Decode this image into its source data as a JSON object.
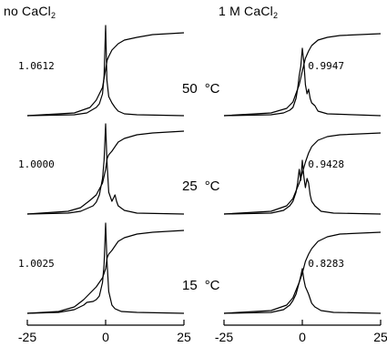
{
  "headers": {
    "left": {
      "prefix": "no CaCl",
      "subscript": "2"
    },
    "right": {
      "prefix": "1 M CaCl",
      "subscript": "2"
    }
  },
  "chart_data": {
    "type": "line",
    "title": "",
    "xlabel": "",
    "ylabel": "",
    "xlim": [
      -25,
      25
    ],
    "x_ticks": [
      "-25",
      "0",
      "25"
    ],
    "grid": false,
    "legend": "none",
    "temperatures": [
      {
        "value": "50",
        "unit": "°C"
      },
      {
        "value": "25",
        "unit": "°C"
      },
      {
        "value": "15",
        "unit": "°C"
      }
    ],
    "columns": [
      {
        "condition": "no CaCl2",
        "panels": [
          {
            "temperature": "50 °C",
            "scale_label": "1.0612",
            "spectrum": [
              [
                -25,
                0.01
              ],
              [
                -10,
                0.02
              ],
              [
                -6,
                0.04
              ],
              [
                -4,
                0.08
              ],
              [
                -3,
                0.1
              ],
              [
                -2,
                0.14
              ],
              [
                -1,
                0.25
              ],
              [
                -0.5,
                0.45
              ],
              [
                0,
                1.0
              ],
              [
                0.4,
                0.4
              ],
              [
                1,
                0.22
              ],
              [
                2,
                0.15
              ],
              [
                3,
                0.1
              ],
              [
                4,
                0.06
              ],
              [
                6,
                0.03
              ],
              [
                10,
                0.02
              ],
              [
                25,
                0.01
              ]
            ],
            "integral": [
              [
                -25,
                0.01
              ],
              [
                -10,
                0.04
              ],
              [
                -5,
                0.1
              ],
              [
                -3,
                0.18
              ],
              [
                -1,
                0.32
              ],
              [
                0,
                0.52
              ],
              [
                0.5,
                0.62
              ],
              [
                1,
                0.66
              ],
              [
                2,
                0.73
              ],
              [
                4,
                0.8
              ],
              [
                6,
                0.84
              ],
              [
                10,
                0.87
              ],
              [
                15,
                0.9
              ],
              [
                25,
                0.92
              ]
            ]
          },
          {
            "temperature": "25 °C",
            "scale_label": "1.0000",
            "spectrum": [
              [
                -25,
                0.01
              ],
              [
                -12,
                0.02
              ],
              [
                -8,
                0.04
              ],
              [
                -6,
                0.07
              ],
              [
                -4,
                0.1
              ],
              [
                -3,
                0.14
              ],
              [
                -2,
                0.22
              ],
              [
                -1,
                0.4
              ],
              [
                -0.5,
                0.6
              ],
              [
                0,
                1.0
              ],
              [
                0.4,
                0.6
              ],
              [
                1,
                0.25
              ],
              [
                2,
                0.15
              ],
              [
                3,
                0.22
              ],
              [
                3.5,
                0.15
              ],
              [
                4,
                0.1
              ],
              [
                6,
                0.05
              ],
              [
                10,
                0.02
              ],
              [
                25,
                0.01
              ]
            ],
            "integral": [
              [
                -25,
                0.01
              ],
              [
                -12,
                0.04
              ],
              [
                -8,
                0.08
              ],
              [
                -5,
                0.16
              ],
              [
                -3,
                0.22
              ],
              [
                -1,
                0.35
              ],
              [
                0,
                0.5
              ],
              [
                0.5,
                0.62
              ],
              [
                1,
                0.66
              ],
              [
                2,
                0.7
              ],
              [
                4,
                0.8
              ],
              [
                6,
                0.84
              ],
              [
                10,
                0.88
              ],
              [
                15,
                0.9
              ],
              [
                25,
                0.92
              ]
            ]
          },
          {
            "temperature": "15 °C",
            "scale_label": "1.0025",
            "spectrum": [
              [
                -25,
                0.01
              ],
              [
                -15,
                0.02
              ],
              [
                -10,
                0.05
              ],
              [
                -7,
                0.1
              ],
              [
                -6,
                0.13
              ],
              [
                -4,
                0.14
              ],
              [
                -3,
                0.16
              ],
              [
                -2,
                0.2
              ],
              [
                -1,
                0.35
              ],
              [
                -0.5,
                0.55
              ],
              [
                0,
                1.0
              ],
              [
                0.4,
                0.6
              ],
              [
                1,
                0.25
              ],
              [
                2,
                0.1
              ],
              [
                3,
                0.06
              ],
              [
                5,
                0.03
              ],
              [
                10,
                0.02
              ],
              [
                25,
                0.01
              ]
            ],
            "integral": [
              [
                -25,
                0.01
              ],
              [
                -15,
                0.03
              ],
              [
                -10,
                0.08
              ],
              [
                -7,
                0.16
              ],
              [
                -5,
                0.23
              ],
              [
                -3,
                0.3
              ],
              [
                -1,
                0.4
              ],
              [
                0,
                0.5
              ],
              [
                0.5,
                0.62
              ],
              [
                1,
                0.66
              ],
              [
                2,
                0.7
              ],
              [
                4,
                0.8
              ],
              [
                6,
                0.84
              ],
              [
                10,
                0.88
              ],
              [
                15,
                0.9
              ],
              [
                25,
                0.92
              ]
            ]
          }
        ]
      },
      {
        "condition": "1 M CaCl2",
        "panels": [
          {
            "temperature": "50 °C",
            "scale_label": "0.9947",
            "spectrum": [
              [
                -25,
                0.01
              ],
              [
                -10,
                0.02
              ],
              [
                -6,
                0.04
              ],
              [
                -4,
                0.07
              ],
              [
                -3,
                0.1
              ],
              [
                -2,
                0.2
              ],
              [
                -1.5,
                0.3
              ],
              [
                -1,
                0.45
              ],
              [
                -0.5,
                0.55
              ],
              [
                0,
                0.75
              ],
              [
                0.5,
                0.6
              ],
              [
                1,
                0.35
              ],
              [
                1.5,
                0.25
              ],
              [
                2,
                0.3
              ],
              [
                2.5,
                0.2
              ],
              [
                3,
                0.15
              ],
              [
                4,
                0.12
              ],
              [
                5,
                0.06
              ],
              [
                8,
                0.03
              ],
              [
                25,
                0.01
              ]
            ],
            "integral": [
              [
                -25,
                0.01
              ],
              [
                -10,
                0.04
              ],
              [
                -5,
                0.09
              ],
              [
                -3,
                0.16
              ],
              [
                -1,
                0.35
              ],
              [
                0,
                0.5
              ],
              [
                1,
                0.64
              ],
              [
                2,
                0.72
              ],
              [
                3,
                0.78
              ],
              [
                5,
                0.84
              ],
              [
                8,
                0.87
              ],
              [
                12,
                0.89
              ],
              [
                25,
                0.91
              ]
            ]
          },
          {
            "temperature": "25 °C",
            "scale_label": "0.9428",
            "spectrum": [
              [
                -25,
                0.01
              ],
              [
                -10,
                0.02
              ],
              [
                -6,
                0.05
              ],
              [
                -4,
                0.1
              ],
              [
                -3,
                0.15
              ],
              [
                -2,
                0.25
              ],
              [
                -1.5,
                0.35
              ],
              [
                -1,
                0.5
              ],
              [
                -0.5,
                0.38
              ],
              [
                0,
                0.6
              ],
              [
                0.5,
                0.42
              ],
              [
                1,
                0.3
              ],
              [
                1.5,
                0.4
              ],
              [
                2,
                0.35
              ],
              [
                2.5,
                0.22
              ],
              [
                3,
                0.15
              ],
              [
                4,
                0.1
              ],
              [
                6,
                0.04
              ],
              [
                10,
                0.02
              ],
              [
                25,
                0.01
              ]
            ],
            "integral": [
              [
                -25,
                0.01
              ],
              [
                -10,
                0.04
              ],
              [
                -5,
                0.1
              ],
              [
                -3,
                0.18
              ],
              [
                -1,
                0.35
              ],
              [
                0,
                0.46
              ],
              [
                1,
                0.58
              ],
              [
                2,
                0.68
              ],
              [
                3,
                0.75
              ],
              [
                5,
                0.82
              ],
              [
                8,
                0.86
              ],
              [
                12,
                0.88
              ],
              [
                25,
                0.9
              ]
            ]
          },
          {
            "temperature": "15 °C",
            "scale_label": "0.8283",
            "spectrum": [
              [
                -25,
                0.01
              ],
              [
                -10,
                0.02
              ],
              [
                -6,
                0.05
              ],
              [
                -4,
                0.1
              ],
              [
                -3,
                0.15
              ],
              [
                -2,
                0.22
              ],
              [
                -1,
                0.35
              ],
              [
                -0.5,
                0.42
              ],
              [
                0,
                0.5
              ],
              [
                0.5,
                0.38
              ],
              [
                1,
                0.3
              ],
              [
                1.5,
                0.26
              ],
              [
                2,
                0.22
              ],
              [
                3,
                0.12
              ],
              [
                4,
                0.08
              ],
              [
                6,
                0.04
              ],
              [
                10,
                0.02
              ],
              [
                25,
                0.01
              ]
            ],
            "integral": [
              [
                -25,
                0.01
              ],
              [
                -10,
                0.04
              ],
              [
                -5,
                0.1
              ],
              [
                -3,
                0.18
              ],
              [
                -1,
                0.35
              ],
              [
                0,
                0.45
              ],
              [
                1,
                0.58
              ],
              [
                2,
                0.66
              ],
              [
                3,
                0.72
              ],
              [
                5,
                0.8
              ],
              [
                8,
                0.85
              ],
              [
                12,
                0.88
              ],
              [
                25,
                0.9
              ]
            ]
          }
        ]
      }
    ]
  }
}
